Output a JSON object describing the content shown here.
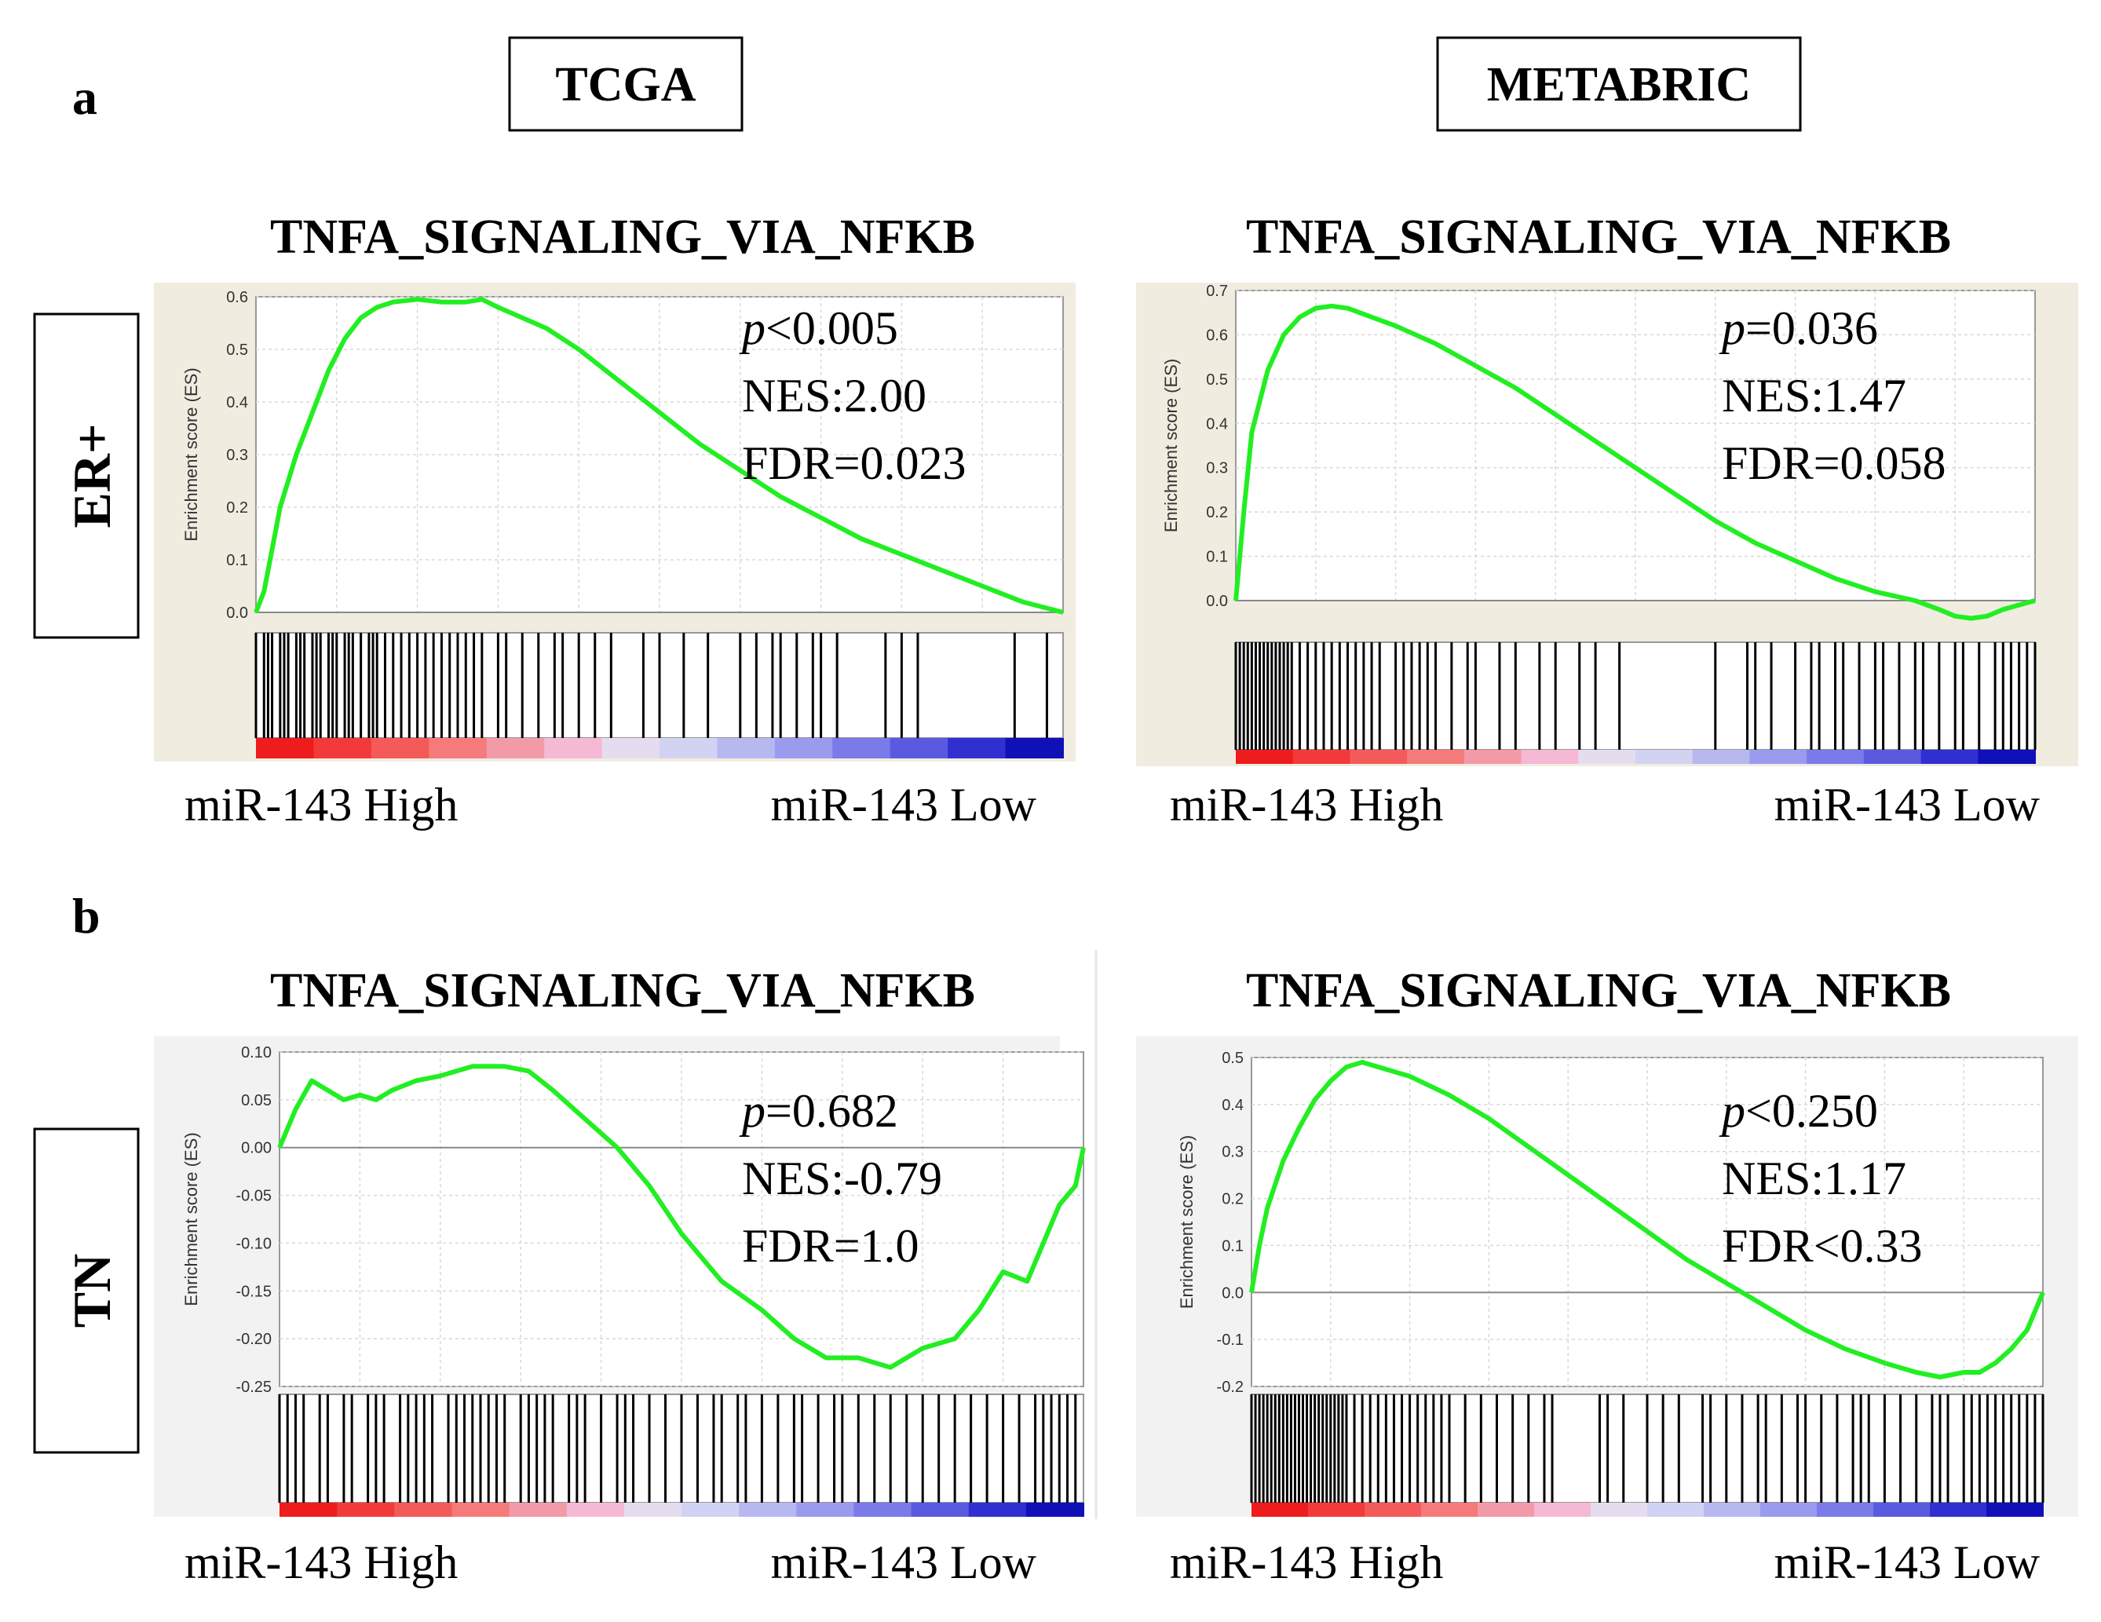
{
  "figure": {
    "panel_a_label": "a",
    "panel_b_label": "b",
    "columns": [
      "TCGA",
      "METABRIC"
    ],
    "rows": [
      "ER+",
      "TN"
    ]
  },
  "colors": {
    "curve": "#22ee22",
    "panel_bg": "#f0ece0",
    "panel_bg_b": "#f2f2f2",
    "grid": "#d8d8d8"
  },
  "chart_data": [
    {
      "id": "er_tcga",
      "type": "line",
      "title": "TNFA_SIGNALING_VIA_NFKB",
      "ylabel": "Enrichment score (ES)",
      "xlabel_left": "miR-143  High",
      "xlabel_right": "miR-143  Low",
      "yticks": [
        "0.6",
        "0.5",
        "0.4",
        "0.3",
        "0.2",
        "0.1",
        "0.0"
      ],
      "ylim": [
        0.0,
        0.6
      ],
      "stats": {
        "p_prefix": "p",
        "p_value": "<0.005",
        "nes": "NES:2.00",
        "fdr": "FDR=0.023"
      },
      "x": [
        0,
        0.01,
        0.02,
        0.03,
        0.05,
        0.07,
        0.09,
        0.11,
        0.13,
        0.15,
        0.17,
        0.2,
        0.23,
        0.26,
        0.28,
        0.3,
        0.33,
        0.36,
        0.4,
        0.45,
        0.5,
        0.55,
        0.6,
        0.65,
        0.7,
        0.75,
        0.8,
        0.85,
        0.9,
        0.95,
        1.0
      ],
      "y": [
        0.0,
        0.04,
        0.12,
        0.2,
        0.3,
        0.38,
        0.46,
        0.52,
        0.56,
        0.58,
        0.59,
        0.595,
        0.59,
        0.59,
        0.595,
        0.58,
        0.56,
        0.54,
        0.5,
        0.44,
        0.38,
        0.32,
        0.27,
        0.22,
        0.18,
        0.14,
        0.11,
        0.08,
        0.05,
        0.02,
        0.0
      ],
      "hits": [
        0.0,
        0.01,
        0.015,
        0.02,
        0.03,
        0.035,
        0.04,
        0.05,
        0.055,
        0.06,
        0.07,
        0.075,
        0.08,
        0.09,
        0.095,
        0.1,
        0.11,
        0.115,
        0.12,
        0.13,
        0.14,
        0.145,
        0.15,
        0.16,
        0.17,
        0.18,
        0.19,
        0.2,
        0.21,
        0.22,
        0.23,
        0.24,
        0.25,
        0.26,
        0.27,
        0.28,
        0.3,
        0.31,
        0.33,
        0.35,
        0.37,
        0.38,
        0.4,
        0.42,
        0.44,
        0.48,
        0.5,
        0.53,
        0.56,
        0.6,
        0.62,
        0.64,
        0.65,
        0.67,
        0.69,
        0.7,
        0.72,
        0.78,
        0.8,
        0.82,
        0.94,
        0.98
      ]
    },
    {
      "id": "er_metabric",
      "type": "line",
      "title": "TNFA_SIGNALING_VIA_NFKB",
      "ylabel": "Enrichment score (ES)",
      "xlabel_left": "miR-143  High",
      "xlabel_right": "miR-143  Low",
      "yticks": [
        "0.7",
        "0.6",
        "0.5",
        "0.4",
        "0.3",
        "0.2",
        "0.1",
        "0.0"
      ],
      "ylim": [
        0.0,
        0.7
      ],
      "stats": {
        "p_prefix": "p",
        "p_value": "=0.036",
        "nes": "NES:1.47",
        "fdr": "FDR=0.058"
      },
      "x": [
        0,
        0.01,
        0.02,
        0.04,
        0.06,
        0.08,
        0.1,
        0.12,
        0.14,
        0.17,
        0.2,
        0.25,
        0.3,
        0.35,
        0.4,
        0.45,
        0.5,
        0.55,
        0.6,
        0.65,
        0.7,
        0.75,
        0.8,
        0.85,
        0.88,
        0.9,
        0.92,
        0.94,
        0.96,
        0.98,
        1.0
      ],
      "y": [
        0.0,
        0.2,
        0.38,
        0.52,
        0.6,
        0.64,
        0.66,
        0.665,
        0.66,
        0.64,
        0.62,
        0.58,
        0.53,
        0.48,
        0.42,
        0.36,
        0.3,
        0.24,
        0.18,
        0.13,
        0.09,
        0.05,
        0.02,
        0.0,
        -0.02,
        -0.035,
        -0.04,
        -0.035,
        -0.02,
        -0.01,
        0.0
      ],
      "hits": [
        0.0,
        0.005,
        0.01,
        0.015,
        0.02,
        0.025,
        0.03,
        0.035,
        0.04,
        0.045,
        0.05,
        0.055,
        0.06,
        0.065,
        0.07,
        0.08,
        0.09,
        0.1,
        0.11,
        0.12,
        0.13,
        0.14,
        0.15,
        0.16,
        0.17,
        0.18,
        0.2,
        0.21,
        0.22,
        0.23,
        0.24,
        0.25,
        0.27,
        0.29,
        0.3,
        0.33,
        0.35,
        0.38,
        0.4,
        0.43,
        0.45,
        0.48,
        0.6,
        0.64,
        0.65,
        0.67,
        0.7,
        0.72,
        0.73,
        0.75,
        0.76,
        0.78,
        0.8,
        0.81,
        0.83,
        0.85,
        0.86,
        0.88,
        0.9,
        0.91,
        0.93,
        0.95,
        0.96,
        0.97,
        0.98,
        0.99,
        1.0
      ]
    },
    {
      "id": "tn_tcga",
      "type": "line",
      "title": "TNFA_SIGNALING_VIA_NFKB",
      "ylabel": "Enrichment score (ES)",
      "xlabel_left": "miR-143  High",
      "xlabel_right": "miR-143  Low",
      "yticks": [
        "0.10",
        "0.05",
        "0.00",
        "-0.05",
        "-0.10",
        "-0.15",
        "-0.20",
        "-0.25"
      ],
      "ylim": [
        -0.25,
        0.1
      ],
      "stats": {
        "p_prefix": "p",
        "p_value": "=0.682",
        "nes": "NES:-0.79",
        "fdr": "FDR=1.0"
      },
      "x": [
        0,
        0.02,
        0.04,
        0.06,
        0.08,
        0.1,
        0.12,
        0.14,
        0.17,
        0.2,
        0.24,
        0.28,
        0.31,
        0.34,
        0.38,
        0.42,
        0.46,
        0.5,
        0.55,
        0.6,
        0.64,
        0.68,
        0.72,
        0.76,
        0.8,
        0.84,
        0.87,
        0.9,
        0.93,
        0.95,
        0.97,
        0.99,
        1.0
      ],
      "y": [
        0.0,
        0.04,
        0.07,
        0.06,
        0.05,
        0.055,
        0.05,
        0.06,
        0.07,
        0.075,
        0.085,
        0.085,
        0.08,
        0.06,
        0.03,
        0.0,
        -0.04,
        -0.09,
        -0.14,
        -0.17,
        -0.2,
        -0.22,
        -0.22,
        -0.23,
        -0.21,
        -0.2,
        -0.17,
        -0.13,
        -0.14,
        -0.1,
        -0.06,
        -0.04,
        0.0
      ],
      "hits": [
        0.0,
        0.01,
        0.02,
        0.03,
        0.05,
        0.06,
        0.08,
        0.09,
        0.11,
        0.12,
        0.13,
        0.15,
        0.16,
        0.17,
        0.18,
        0.19,
        0.21,
        0.22,
        0.23,
        0.24,
        0.25,
        0.26,
        0.27,
        0.28,
        0.3,
        0.31,
        0.32,
        0.33,
        0.34,
        0.36,
        0.37,
        0.38,
        0.4,
        0.42,
        0.43,
        0.44,
        0.46,
        0.48,
        0.5,
        0.52,
        0.54,
        0.55,
        0.57,
        0.58,
        0.6,
        0.62,
        0.64,
        0.65,
        0.67,
        0.69,
        0.7,
        0.72,
        0.74,
        0.76,
        0.78,
        0.8,
        0.82,
        0.84,
        0.86,
        0.88,
        0.9,
        0.92,
        0.94,
        0.95,
        0.96,
        0.97,
        0.98,
        0.99
      ]
    },
    {
      "id": "tn_metabric",
      "type": "line",
      "title": "TNFA_SIGNALING_VIA_NFKB",
      "ylabel": "Enrichment score (ES)",
      "xlabel_left": "miR-143  High",
      "xlabel_right": "miR-143  Low",
      "yticks": [
        "0.5",
        "0.4",
        "0.3",
        "0.2",
        "0.1",
        "0.0",
        "-0.1",
        "-0.2"
      ],
      "ylim": [
        -0.2,
        0.5
      ],
      "stats": {
        "p_prefix": "p",
        "p_value": "<0.250",
        "nes": "NES:1.17",
        "fdr": "FDR<0.33"
      },
      "x": [
        0,
        0.01,
        0.02,
        0.04,
        0.06,
        0.08,
        0.1,
        0.12,
        0.14,
        0.16,
        0.2,
        0.25,
        0.3,
        0.35,
        0.4,
        0.45,
        0.5,
        0.55,
        0.6,
        0.65,
        0.7,
        0.75,
        0.8,
        0.84,
        0.87,
        0.9,
        0.92,
        0.94,
        0.96,
        0.98,
        1.0
      ],
      "y": [
        0.0,
        0.1,
        0.18,
        0.28,
        0.35,
        0.41,
        0.45,
        0.48,
        0.49,
        0.48,
        0.46,
        0.42,
        0.37,
        0.31,
        0.25,
        0.19,
        0.13,
        0.07,
        0.02,
        -0.03,
        -0.08,
        -0.12,
        -0.15,
        -0.17,
        -0.18,
        -0.17,
        -0.17,
        -0.15,
        -0.12,
        -0.08,
        0.0
      ],
      "hits": [
        0.0,
        0.005,
        0.01,
        0.015,
        0.02,
        0.025,
        0.03,
        0.035,
        0.04,
        0.045,
        0.05,
        0.055,
        0.06,
        0.065,
        0.07,
        0.075,
        0.08,
        0.085,
        0.09,
        0.095,
        0.1,
        0.105,
        0.11,
        0.115,
        0.12,
        0.13,
        0.14,
        0.15,
        0.16,
        0.17,
        0.18,
        0.19,
        0.2,
        0.21,
        0.22,
        0.23,
        0.24,
        0.25,
        0.27,
        0.29,
        0.31,
        0.33,
        0.35,
        0.37,
        0.38,
        0.44,
        0.45,
        0.47,
        0.5,
        0.52,
        0.54,
        0.57,
        0.58,
        0.6,
        0.62,
        0.64,
        0.65,
        0.67,
        0.69,
        0.7,
        0.72,
        0.74,
        0.76,
        0.77,
        0.78,
        0.8,
        0.82,
        0.84,
        0.86,
        0.87,
        0.88,
        0.9,
        0.91,
        0.92,
        0.93,
        0.94,
        0.95,
        0.96,
        0.97,
        0.98,
        0.99,
        1.0
      ]
    }
  ]
}
